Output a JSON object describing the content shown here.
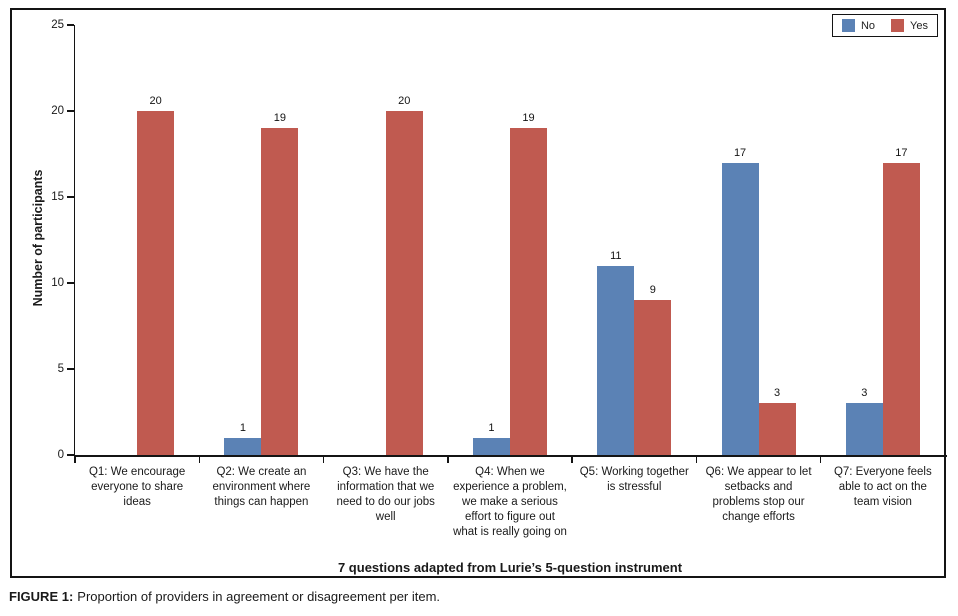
{
  "figure": {
    "caption_prefix": "FIGURE 1:",
    "caption_text": "Proportion of providers in agreement or disagreement per item."
  },
  "chart_data": {
    "type": "bar",
    "title": "",
    "categories": [
      "Q1: We encourage everyone to share ideas",
      "Q2: We create an environment where things can happen",
      "Q3: We have the information that we need to do our jobs well",
      "Q4: When we experience a problem, we make a serious effort to figure out what is really going on",
      "Q5: Working together is stressful",
      "Q6: We appear to let setbacks and problems stop our change efforts",
      "Q7: Everyone feels able to act on the team vision"
    ],
    "series": [
      {
        "name": "No",
        "color": "#5b82b5",
        "values": [
          0,
          1,
          0,
          1,
          11,
          17,
          3
        ]
      },
      {
        "name": "Yes",
        "color": "#c05a50",
        "values": [
          20,
          19,
          20,
          19,
          9,
          3,
          17
        ]
      }
    ],
    "xlabel": "7 questions adapted from Lurie’s 5-question instrument",
    "ylabel": "Number of participants",
    "ylim": [
      0,
      25
    ],
    "yticks": [
      0,
      5,
      10,
      15,
      20,
      25
    ],
    "grid": false,
    "legend_position": "top-right",
    "value_labels": "shown above non-zero bars"
  }
}
